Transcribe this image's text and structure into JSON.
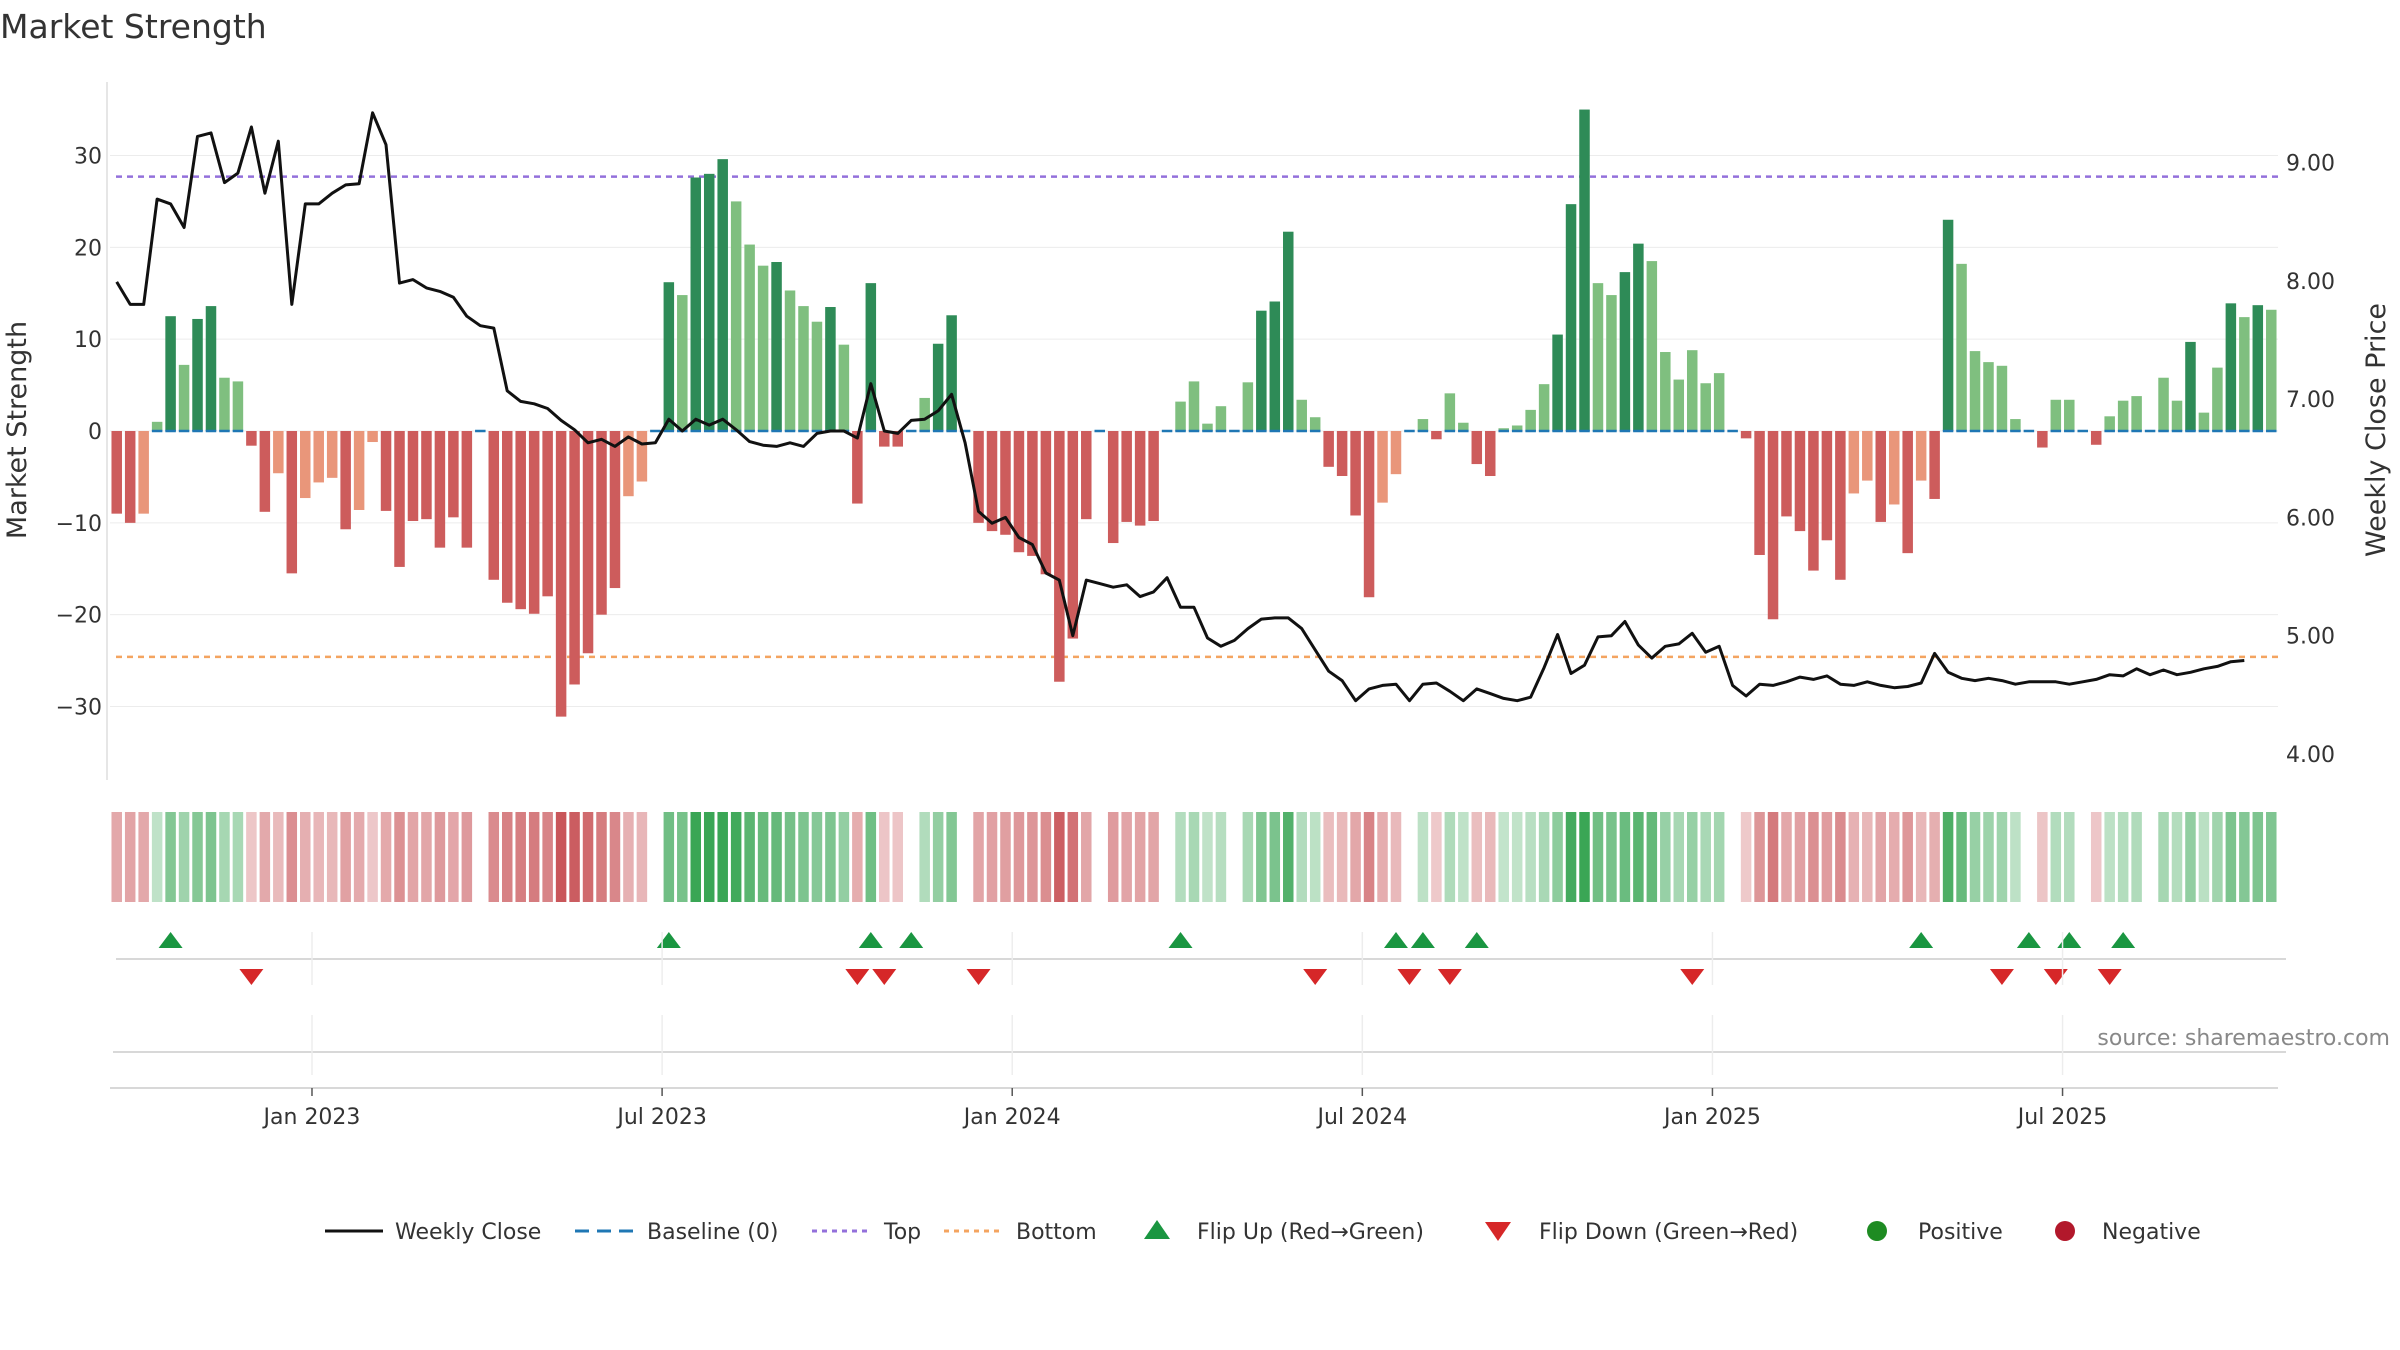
{
  "chart_data": {
    "type": "bar+line",
    "title": "Market Strength",
    "ylabel_left": "Market Strength",
    "ylabel_right": "Weekly Close Price",
    "ylim_left": [
      -38,
      38
    ],
    "ylim_right": [
      3.78,
      9.68
    ],
    "yticks_left": [
      -30,
      -20,
      -10,
      0,
      10,
      20,
      30
    ],
    "yticks_left_labels": [
      "−30",
      "−20",
      "−10",
      "0",
      "10",
      "20",
      "30"
    ],
    "yticks_right": [
      4.0,
      5.0,
      6.0,
      7.0,
      8.0,
      9.0
    ],
    "yticks_right_labels": [
      "4.00",
      "5.00",
      "6.00",
      "7.00",
      "8.00",
      "9.00"
    ],
    "xticks": [
      "Jan 2023",
      "Jul 2023",
      "Jan 2024",
      "Jul 2024",
      "Jan 2025",
      "Jul 2025"
    ],
    "xtick_week_index": [
      15,
      41,
      67,
      93,
      119,
      145
    ],
    "top_level": 27.7,
    "bottom_level": -24.6,
    "strength": [
      -9,
      -10,
      -9,
      1,
      12.5,
      7.2,
      12.2,
      13.6,
      5.8,
      5.4,
      -1.6,
      -8.8,
      -4.6,
      -15.5,
      -7.3,
      -5.6,
      -5.1,
      -10.7,
      -8.6,
      -1.2,
      -8.7,
      -14.8,
      -9.8,
      -9.6,
      -12.7,
      -9.4,
      -12.7,
      0,
      -16.2,
      -18.7,
      -19.4,
      -19.9,
      -18,
      -31.1,
      -27.6,
      -24.2,
      -20,
      -17.1,
      -7.1,
      -5.5,
      0,
      16.2,
      14.8,
      27.6,
      28,
      29.6,
      25,
      20.3,
      18,
      18.4,
      15.3,
      13.6,
      11.9,
      13.5,
      9.4,
      -7.9,
      16.1,
      -1.7,
      -1.7,
      0,
      3.6,
      9.5,
      12.6,
      0,
      -10,
      -10.9,
      -11.3,
      -13.2,
      -13.6,
      -15.6,
      -27.3,
      -22.6,
      -9.6,
      0,
      -12.2,
      -9.9,
      -10.3,
      -9.8,
      0,
      3.2,
      5.4,
      0.8,
      2.7,
      0,
      5.3,
      13.1,
      14.1,
      21.7,
      3.4,
      1.5,
      -3.9,
      -4.9,
      -9.2,
      -18.1,
      -7.8,
      -4.7,
      0,
      1.3,
      -0.9,
      4.1,
      0.9,
      -3.6,
      -4.9,
      0.3,
      0.6,
      2.3,
      5.1,
      10.5,
      24.7,
      35,
      16.1,
      14.8,
      17.3,
      20.4,
      18.5,
      8.6,
      5.6,
      8.8,
      5.2,
      6.3,
      0,
      -0.8,
      -13.5,
      -20.5,
      -9.3,
      -10.9,
      -15.2,
      -11.9,
      -16.2,
      -6.8,
      -5.4,
      -9.9,
      -8,
      -13.3,
      -5.4,
      -7.4,
      23,
      18.2,
      8.7,
      7.5,
      7.1,
      1.3,
      0,
      -1.8,
      3.4,
      3.4,
      0,
      -1.5,
      1.6,
      3.3,
      3.8,
      0,
      5.8,
      3.3,
      9.7,
      2,
      6.9,
      13.9,
      12.4,
      13.7,
      13.2
    ],
    "weekly_close": [
      7.99,
      7.8,
      7.8,
      8.69,
      8.65,
      8.45,
      9.22,
      9.25,
      8.83,
      8.91,
      9.3,
      8.74,
      9.18,
      7.8,
      8.65,
      8.65,
      8.74,
      8.81,
      8.82,
      9.42,
      9.15,
      7.98,
      8.01,
      7.94,
      7.91,
      7.86,
      7.7,
      7.62,
      7.6,
      7.07,
      6.98,
      6.96,
      6.92,
      6.82,
      6.74,
      6.63,
      6.66,
      6.6,
      6.68,
      6.62,
      6.63,
      6.83,
      6.73,
      6.83,
      6.78,
      6.83,
      6.74,
      6.64,
      6.61,
      6.6,
      6.63,
      6.6,
      6.71,
      6.73,
      6.73,
      6.67,
      7.13,
      6.73,
      6.71,
      6.82,
      6.83,
      6.9,
      7.04,
      6.63,
      6.05,
      5.95,
      6.0,
      5.83,
      5.77,
      5.53,
      5.47,
      5.0,
      5.47,
      5.44,
      5.41,
      5.43,
      5.33,
      5.37,
      5.49,
      5.24,
      5.24,
      4.98,
      4.91,
      4.96,
      5.06,
      5.14,
      5.15,
      5.15,
      5.06,
      4.88,
      4.7,
      4.62,
      4.45,
      4.55,
      4.58,
      4.59,
      4.45,
      4.59,
      4.6,
      4.53,
      4.45,
      4.55,
      4.51,
      4.47,
      4.45,
      4.48,
      4.73,
      5.01,
      4.68,
      4.75,
      4.99,
      5.0,
      5.12,
      4.92,
      4.81,
      4.91,
      4.93,
      5.02,
      4.86,
      4.91,
      4.58,
      4.49,
      4.59,
      4.58,
      4.61,
      4.65,
      4.63,
      4.66,
      4.59,
      4.58,
      4.61,
      4.58,
      4.56,
      4.57,
      4.6,
      4.85,
      4.69,
      4.64,
      4.62,
      4.64,
      4.62,
      4.59,
      4.61,
      4.61,
      4.61,
      4.59,
      4.61,
      4.63,
      4.67,
      4.66,
      4.72,
      4.67,
      4.71,
      4.67,
      4.69,
      4.72,
      4.74,
      4.78,
      4.79
    ],
    "flips_up": [
      4,
      41,
      56,
      59,
      79,
      95,
      97,
      101,
      134,
      142,
      145,
      149
    ],
    "flips_down": [
      10,
      55,
      57,
      64,
      89,
      96,
      99,
      117,
      140,
      144,
      148
    ],
    "colors": {
      "strong_green": "#2e8b57",
      "light_green": "#7fbf7f",
      "strong_red": "#cd5c5c",
      "light_red": "#e9967a",
      "line": "#111111",
      "baseline": "#1f77b4",
      "top": "#9370db",
      "bottom": "#f4a460",
      "flip_up": "#1a9641",
      "flip_down": "#d62728",
      "positive": "#1e8b22",
      "negative": "#b2182b"
    }
  },
  "legend": {
    "weekly_close": "Weekly Close",
    "baseline": "Baseline (0)",
    "top": "Top",
    "bottom": "Bottom",
    "flip_up": "Flip Up (Red→Green)",
    "flip_down": "Flip Down (Green→Red)",
    "positive": "Positive",
    "negative": "Negative"
  },
  "source": "source: sharemaestro.com"
}
